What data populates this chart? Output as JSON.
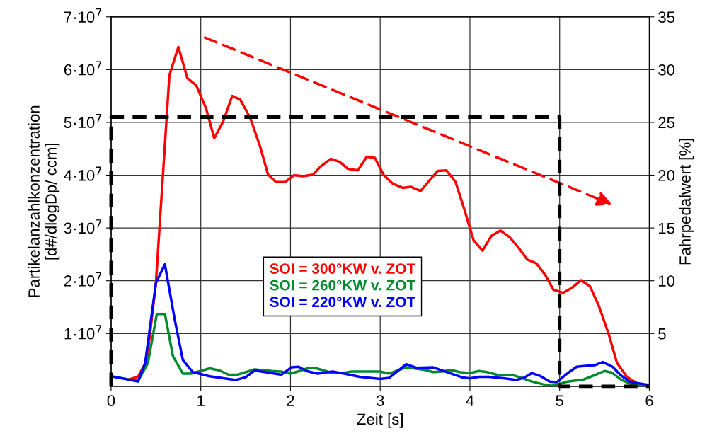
{
  "chart_data": {
    "type": "line",
    "xlabel": "Zeit [s]",
    "ylabel": "Partikelanzahlkonzentration\n[d#/dlogDp/ ccm]",
    "y2label": "Fahrpedalwert [%]",
    "xlim": [
      0,
      6
    ],
    "xticks": [
      0,
      1,
      2,
      3,
      4,
      5,
      6
    ],
    "ylim": [
      0,
      70000000
    ],
    "yticks": [
      {
        "value": 10000000,
        "label": "1·10$^{7}$"
      },
      {
        "value": 20000000,
        "label": "2·10$^{7}$"
      },
      {
        "value": 30000000,
        "label": "3·10$^{7}$"
      },
      {
        "value": 40000000,
        "label": "4·10$^{7}$"
      },
      {
        "value": 50000000,
        "label": "5·10$^{7}$"
      },
      {
        "value": 60000000,
        "label": "6·10$^{7}$"
      },
      {
        "value": 70000000,
        "label": "7·10$^{7}$"
      }
    ],
    "y2lim": [
      0,
      35
    ],
    "y2ticks": [
      5,
      10,
      15,
      20,
      25,
      30,
      35
    ],
    "grid": true,
    "legend": "center",
    "marker": "none",
    "series": [
      {
        "name": "SOI = 300°KW v. ZOT",
        "color": "#ff0000",
        "line_style": "solid",
        "x": [
          0.2,
          0.3,
          0.4,
          0.5,
          0.65,
          0.75,
          0.85,
          0.95,
          1.06,
          1.15,
          1.25,
          1.35,
          1.44,
          1.55,
          1.66,
          1.75,
          1.84,
          1.94,
          2.04,
          2.14,
          2.25,
          2.34,
          2.45,
          2.55,
          2.64,
          2.75,
          2.85,
          2.94,
          3.04,
          3.14,
          3.25,
          3.34,
          3.45,
          3.55,
          3.64,
          3.74,
          3.84,
          3.94,
          4.04,
          4.14,
          4.24,
          4.34,
          4.44,
          4.54,
          4.64,
          4.74,
          4.84,
          4.93,
          5.04,
          5.14,
          5.24,
          5.34,
          5.44,
          5.55,
          5.64,
          5.75,
          5.85
        ],
        "values": [
          1300000,
          1800000,
          5000000,
          19600000,
          58900000,
          64300000,
          58400000,
          57000000,
          52600000,
          47000000,
          50200000,
          55000000,
          54300000,
          50900000,
          45500000,
          40100000,
          38700000,
          38700000,
          40000000,
          39800000,
          40100000,
          41700000,
          43100000,
          42500000,
          41200000,
          40900000,
          43500000,
          43300000,
          40000000,
          38400000,
          37600000,
          37800000,
          37000000,
          39000000,
          40800000,
          40900000,
          38700000,
          33400000,
          27700000,
          25700000,
          28500000,
          29500000,
          28300000,
          26300000,
          24000000,
          23300000,
          21100000,
          18300000,
          17700000,
          18700000,
          20100000,
          18900000,
          15100000,
          9700000,
          4400000,
          1800000,
          700000
        ]
      },
      {
        "name": "SOI = 260°KW v. ZOT",
        "color": "#008a2e",
        "line_style": "solid",
        "x": [
          0,
          0.3,
          0.41,
          0.51,
          0.6,
          0.69,
          0.8,
          0.89,
          1.1,
          1.21,
          1.31,
          1.41,
          1.6,
          1.79,
          1.89,
          2.0,
          2.1,
          2.21,
          2.29,
          2.45,
          2.58,
          2.68,
          2.79,
          3.0,
          3.1,
          3.29,
          3.5,
          3.59,
          3.69,
          3.79,
          3.88,
          4.0,
          4.1,
          4.19,
          4.3,
          4.48,
          4.59,
          4.69,
          4.81,
          4.91,
          4.97,
          5.09,
          5.27,
          5.39,
          5.5,
          5.58,
          5.69,
          5.8,
          5.98
        ],
        "values": [
          1900000,
          1000000,
          4400000,
          13700000,
          13700000,
          5700000,
          2400000,
          2400000,
          3400000,
          3000000,
          2200000,
          2200000,
          3200000,
          2900000,
          2800000,
          2400000,
          2900000,
          3500000,
          3400000,
          2600000,
          2500000,
          2800000,
          2800000,
          2800000,
          2400000,
          3600000,
          3100000,
          2700000,
          2800000,
          3100000,
          2700000,
          2500000,
          2900000,
          2700000,
          2200000,
          2100000,
          1500000,
          900000,
          400000,
          100000,
          300000,
          900000,
          1300000,
          2100000,
          2900000,
          2600000,
          1200000,
          400000,
          100000
        ]
      },
      {
        "name": "SOI = 220°KW v. ZOT",
        "color": "#0000ff",
        "line_style": "solid",
        "x": [
          0,
          0.3,
          0.38,
          0.5,
          0.6,
          0.71,
          0.8,
          0.91,
          1.1,
          1.39,
          1.5,
          1.6,
          1.79,
          1.9,
          2.01,
          2.09,
          2.18,
          2.3,
          2.47,
          2.6,
          2.77,
          3.0,
          3.1,
          3.29,
          3.41,
          3.59,
          3.79,
          3.91,
          4.0,
          4.1,
          4.21,
          4.39,
          4.52,
          4.6,
          4.69,
          4.79,
          4.89,
          4.97,
          5.09,
          5.19,
          5.31,
          5.39,
          5.48,
          5.59,
          5.68,
          5.79,
          5.98
        ],
        "values": [
          1900000,
          900000,
          4400000,
          19600000,
          23100000,
          12600000,
          5000000,
          2700000,
          1900000,
          1200000,
          1700000,
          3000000,
          2500000,
          2200000,
          3600000,
          3700000,
          2900000,
          2400000,
          2800000,
          2400000,
          1800000,
          1400000,
          1600000,
          4200000,
          3500000,
          3600000,
          2400000,
          1700000,
          1500000,
          1800000,
          1800000,
          1500000,
          1200000,
          1600000,
          2500000,
          1900000,
          900000,
          800000,
          2500000,
          3700000,
          3900000,
          4000000,
          4600000,
          3700000,
          2100000,
          800000,
          300000
        ]
      },
      {
        "color": "#000000",
        "axis": "y2",
        "line_style": "dashed",
        "x": [
          0,
          0,
          5,
          5,
          6
        ],
        "values": [
          0,
          25.5,
          25.5,
          0,
          0
        ]
      }
    ]
  }
}
